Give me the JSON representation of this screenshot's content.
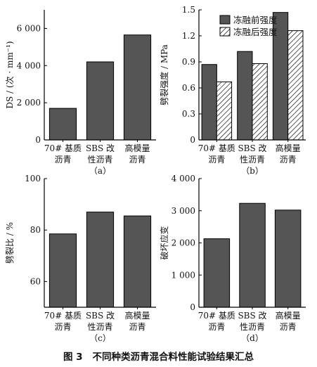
{
  "figure_caption": {
    "number": "图 3",
    "text": "不同种类沥青混合料性能试验结果汇总"
  },
  "colors": {
    "bar_fill": "#555555",
    "axis": "#000000",
    "hatch_line": "#000000",
    "background": "#ffffff"
  },
  "chart_data": [
    {
      "type": "bar",
      "panel_label": "（a）",
      "ylabel": "DS / (次 · mm⁻¹)",
      "ylim": [
        0,
        7000
      ],
      "yticks": [
        0,
        2000,
        4000,
        6000
      ],
      "ytick_labels": [
        "0",
        "2 000",
        "4 000",
        "6 000"
      ],
      "categories": [
        [
          "70# 基质",
          "沥青"
        ],
        [
          "SBS 改",
          "性沥青"
        ],
        [
          "高模量",
          "沥青"
        ]
      ],
      "series": [
        {
          "values": [
            1700,
            4200,
            5650
          ],
          "pattern": "solid"
        }
      ]
    },
    {
      "type": "bar",
      "panel_label": "（b）",
      "ylabel": "劈裂强度 / MPa",
      "ylim": [
        0,
        1.5
      ],
      "yticks": [
        0,
        0.3,
        0.6,
        0.9,
        1.2,
        1.5
      ],
      "ytick_labels": [
        "0",
        "0.3",
        "0.6",
        "0.9",
        "1.2",
        "1.5"
      ],
      "legend_position": "top-right",
      "categories": [
        [
          "70# 基质",
          "沥青"
        ],
        [
          "SBS 改",
          "性沥青"
        ],
        [
          "高模量",
          "沥青"
        ]
      ],
      "series": [
        {
          "name": "冻融前强度",
          "values": [
            0.87,
            1.02,
            1.47
          ],
          "pattern": "solid"
        },
        {
          "name": "冻融后强度",
          "values": [
            0.67,
            0.88,
            1.26
          ],
          "pattern": "hatch"
        }
      ]
    },
    {
      "type": "bar",
      "panel_label": "（c）",
      "ylabel": "劈裂比 / %",
      "ylim": [
        50,
        100
      ],
      "yticks": [
        60,
        80,
        100
      ],
      "ytick_labels": [
        "60",
        "80",
        "100"
      ],
      "categories": [
        [
          "70# 基质",
          "沥青"
        ],
        [
          "SBS 改",
          "性沥青"
        ],
        [
          "高模量",
          "沥青"
        ]
      ],
      "series": [
        {
          "values": [
            78.5,
            87,
            85.5
          ],
          "pattern": "solid"
        }
      ]
    },
    {
      "type": "bar",
      "panel_label": "（d）",
      "ylabel": "破坏应变",
      "ylim": [
        0,
        4000
      ],
      "yticks": [
        0,
        1000,
        2000,
        3000,
        4000
      ],
      "ytick_labels": [
        "0",
        "1 000",
        "2 000",
        "3 000",
        "4 000"
      ],
      "categories": [
        [
          "70# 基质",
          "沥青"
        ],
        [
          "SBS 改",
          "性沥青"
        ],
        [
          "高模量",
          "沥青"
        ]
      ],
      "series": [
        {
          "values": [
            2130,
            3230,
            3020
          ],
          "pattern": "solid"
        }
      ]
    }
  ]
}
